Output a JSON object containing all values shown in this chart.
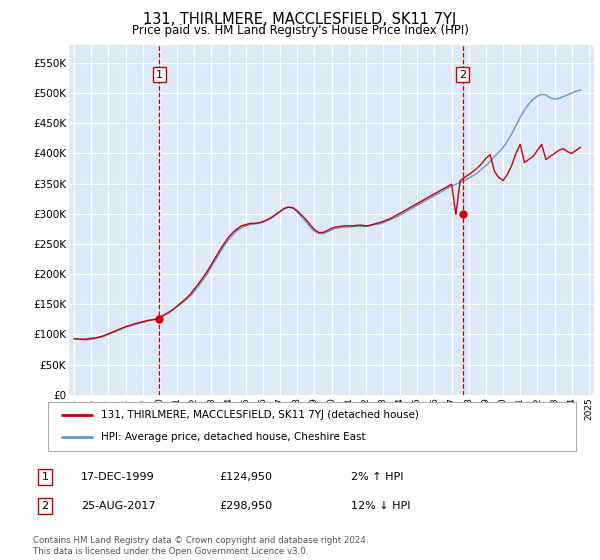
{
  "title": "131, THIRLMERE, MACCLESFIELD, SK11 7YJ",
  "subtitle": "Price paid vs. HM Land Registry's House Price Index (HPI)",
  "ylabel_ticks": [
    "£0",
    "£50K",
    "£100K",
    "£150K",
    "£200K",
    "£250K",
    "£300K",
    "£350K",
    "£400K",
    "£450K",
    "£500K",
    "£550K"
  ],
  "ytick_values": [
    0,
    50000,
    100000,
    150000,
    200000,
    250000,
    300000,
    350000,
    400000,
    450000,
    500000,
    550000
  ],
  "ylim": [
    0,
    580000
  ],
  "xlim_start": 1994.7,
  "xlim_end": 2025.3,
  "background_color": "#dce9f8",
  "figure_bg_color": "#ffffff",
  "legend_label_red": "131, THIRLMERE, MACCLESFIELD, SK11 7YJ (detached house)",
  "legend_label_blue": "HPI: Average price, detached house, Cheshire East",
  "sale1_date": "17-DEC-1999",
  "sale1_price": "£124,950",
  "sale1_hpi": "2% ↑ HPI",
  "sale1_year": 1999.96,
  "sale1_value": 124950,
  "sale2_date": "25-AUG-2017",
  "sale2_price": "£298,950",
  "sale2_hpi": "12% ↓ HPI",
  "sale2_year": 2017.64,
  "sale2_value": 298950,
  "footer_line1": "Contains HM Land Registry data © Crown copyright and database right 2024.",
  "footer_line2": "This data is licensed under the Open Government Licence v3.0.",
  "red_color": "#cc0000",
  "blue_color": "#6699cc",
  "hpi_data_years": [
    1995.0,
    1995.25,
    1995.5,
    1995.75,
    1996.0,
    1996.25,
    1996.5,
    1996.75,
    1997.0,
    1997.25,
    1997.5,
    1997.75,
    1998.0,
    1998.25,
    1998.5,
    1998.75,
    1999.0,
    1999.25,
    1999.5,
    1999.75,
    2000.0,
    2000.25,
    2000.5,
    2000.75,
    2001.0,
    2001.25,
    2001.5,
    2001.75,
    2002.0,
    2002.25,
    2002.5,
    2002.75,
    2003.0,
    2003.25,
    2003.5,
    2003.75,
    2004.0,
    2004.25,
    2004.5,
    2004.75,
    2005.0,
    2005.25,
    2005.5,
    2005.75,
    2006.0,
    2006.25,
    2006.5,
    2006.75,
    2007.0,
    2007.25,
    2007.5,
    2007.75,
    2008.0,
    2008.25,
    2008.5,
    2008.75,
    2009.0,
    2009.25,
    2009.5,
    2009.75,
    2010.0,
    2010.25,
    2010.5,
    2010.75,
    2011.0,
    2011.25,
    2011.5,
    2011.75,
    2012.0,
    2012.25,
    2012.5,
    2012.75,
    2013.0,
    2013.25,
    2013.5,
    2013.75,
    2014.0,
    2014.25,
    2014.5,
    2014.75,
    2015.0,
    2015.25,
    2015.5,
    2015.75,
    2016.0,
    2016.25,
    2016.5,
    2016.75,
    2017.0,
    2017.25,
    2017.5,
    2017.75,
    2018.0,
    2018.25,
    2018.5,
    2018.75,
    2019.0,
    2019.25,
    2019.5,
    2019.75,
    2020.0,
    2020.25,
    2020.5,
    2020.75,
    2021.0,
    2021.25,
    2021.5,
    2021.75,
    2022.0,
    2022.25,
    2022.5,
    2022.75,
    2023.0,
    2023.25,
    2023.5,
    2023.75,
    2024.0,
    2024.25,
    2024.5
  ],
  "hpi_data_values": [
    93000,
    92000,
    91500,
    91000,
    92000,
    93000,
    95000,
    97000,
    100000,
    103000,
    106000,
    109000,
    112000,
    114000,
    116000,
    118000,
    120000,
    122000,
    124000,
    126000,
    129000,
    133000,
    137000,
    141000,
    146000,
    151000,
    157000,
    163000,
    171000,
    180000,
    190000,
    200000,
    212000,
    224000,
    236000,
    247000,
    257000,
    265000,
    272000,
    277000,
    280000,
    282000,
    283000,
    284000,
    286000,
    289000,
    293000,
    298000,
    303000,
    308000,
    311000,
    309000,
    303000,
    295000,
    287000,
    278000,
    271000,
    267000,
    267000,
    270000,
    273000,
    276000,
    277000,
    278000,
    278000,
    279000,
    279000,
    279000,
    279000,
    280000,
    282000,
    283000,
    285000,
    288000,
    291000,
    294000,
    298000,
    302000,
    306000,
    310000,
    314000,
    318000,
    322000,
    326000,
    330000,
    334000,
    338000,
    342000,
    346000,
    349000,
    352000,
    355000,
    359000,
    363000,
    368000,
    374000,
    380000,
    387000,
    395000,
    402000,
    410000,
    420000,
    432000,
    446000,
    460000,
    472000,
    482000,
    490000,
    495000,
    498000,
    497000,
    492000,
    490000,
    491000,
    494000,
    497000,
    500000,
    503000,
    505000
  ],
  "price_data_years": [
    1995.0,
    1995.25,
    1995.5,
    1995.75,
    1996.0,
    1996.25,
    1996.5,
    1996.75,
    1997.0,
    1997.25,
    1997.5,
    1997.75,
    1998.0,
    1998.25,
    1998.5,
    1998.75,
    1999.0,
    1999.25,
    1999.5,
    1999.75,
    2000.0,
    2000.25,
    2000.5,
    2000.75,
    2001.0,
    2001.25,
    2001.5,
    2001.75,
    2002.0,
    2002.25,
    2002.5,
    2002.75,
    2003.0,
    2003.25,
    2003.5,
    2003.75,
    2004.0,
    2004.25,
    2004.5,
    2004.75,
    2005.0,
    2005.25,
    2005.5,
    2005.75,
    2006.0,
    2006.25,
    2006.5,
    2006.75,
    2007.0,
    2007.25,
    2007.5,
    2007.75,
    2008.0,
    2008.25,
    2008.5,
    2008.75,
    2009.0,
    2009.25,
    2009.5,
    2009.75,
    2010.0,
    2010.25,
    2010.5,
    2010.75,
    2011.0,
    2011.25,
    2011.5,
    2011.75,
    2012.0,
    2012.25,
    2012.5,
    2012.75,
    2013.0,
    2013.25,
    2013.5,
    2013.75,
    2014.0,
    2014.25,
    2014.5,
    2014.75,
    2015.0,
    2015.25,
    2015.5,
    2015.75,
    2016.0,
    2016.25,
    2016.5,
    2016.75,
    2017.0,
    2017.25,
    2017.5,
    2017.75,
    2018.0,
    2018.25,
    2018.5,
    2018.75,
    2019.0,
    2019.25,
    2019.5,
    2019.75,
    2020.0,
    2020.25,
    2020.5,
    2020.75,
    2021.0,
    2021.25,
    2021.5,
    2021.75,
    2022.0,
    2022.25,
    2022.5,
    2022.75,
    2023.0,
    2023.25,
    2023.5,
    2023.75,
    2024.0,
    2024.25,
    2024.5
  ],
  "price_data_values": [
    93000,
    92500,
    92000,
    92500,
    93500,
    94500,
    96000,
    98000,
    101000,
    104000,
    107000,
    110000,
    113000,
    115000,
    117500,
    119500,
    121000,
    123000,
    124000,
    124950,
    128000,
    132000,
    136000,
    141000,
    147000,
    153000,
    159000,
    166000,
    175000,
    184000,
    194000,
    204000,
    216000,
    228000,
    240000,
    251000,
    261000,
    269000,
    275000,
    280000,
    282000,
    284000,
    284000,
    285000,
    287000,
    290000,
    294000,
    299000,
    304000,
    309000,
    311000,
    310000,
    305000,
    298000,
    291000,
    282000,
    274000,
    269000,
    269000,
    272000,
    276000,
    278000,
    279000,
    280000,
    280000,
    280000,
    281000,
    281000,
    280000,
    281000,
    283000,
    285000,
    287000,
    290000,
    293000,
    297000,
    301000,
    305000,
    309000,
    313000,
    317000,
    321000,
    325000,
    329000,
    333000,
    337000,
    341000,
    345000,
    349000,
    298950,
    355000,
    360000,
    365000,
    370000,
    376000,
    383000,
    392000,
    398000,
    370000,
    360000,
    355000,
    365000,
    380000,
    400000,
    415000,
    385000,
    390000,
    395000,
    405000,
    415000,
    390000,
    395000,
    400000,
    405000,
    408000,
    403000,
    400000,
    405000,
    410000
  ]
}
